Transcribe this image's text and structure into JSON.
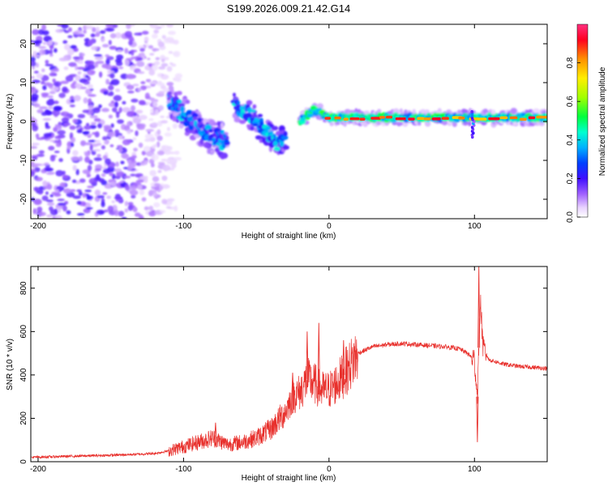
{
  "title": "S199.2026.009.21.42.G14",
  "colors": {
    "snr_line": "#e8302c",
    "frame": "#000000"
  },
  "chart_data": [
    {
      "type": "heatmap",
      "title": "S199.2026.009.21.42.G14",
      "xlabel": "Height of straight line (km)",
      "ylabel": "Frequency (Hz)",
      "xlim": [
        -205,
        150
      ],
      "ylim": [
        -25,
        25
      ],
      "x_ticks": [
        "-200",
        "-100",
        "0",
        "100"
      ],
      "x_tick_values": [
        -200,
        -100,
        0,
        100
      ],
      "y_ticks": [
        "20",
        "10",
        "0",
        "-10",
        "-20"
      ],
      "y_tick_values": [
        20,
        10,
        0,
        -10,
        -20
      ],
      "colorbar": {
        "label": "Normalized spectral amplitude",
        "range": [
          0.0,
          1.0
        ],
        "ticks": [
          "0.0",
          "0.2",
          "0.4",
          "0.6",
          "0.8"
        ],
        "tick_values": [
          0.0,
          0.2,
          0.4,
          0.6,
          0.8
        ],
        "colormap": [
          "#ffffff",
          "#d9b6ff",
          "#8a3cf0",
          "#2a00ff",
          "#00a0ff",
          "#00ffe0",
          "#00ff40",
          "#b0ff00",
          "#ffff00",
          "#ff9000",
          "#ff0030",
          "#ff40c0"
        ]
      },
      "description_of_structure": {
        "noise_region_km": [
          -205,
          -110
        ],
        "descending_ridge": [
          [
            -110,
            6
          ],
          [
            -100,
            2
          ],
          [
            -90,
            -1
          ],
          [
            -80,
            -4
          ],
          [
            -70,
            -5
          ]
        ],
        "upper_ridge": [
          [
            -65,
            4
          ],
          [
            -55,
            2
          ],
          [
            -45,
            -2
          ],
          [
            -35,
            -6
          ],
          [
            -30,
            -4
          ]
        ],
        "stable_tone": [
          [
            -20,
            0
          ],
          [
            -10,
            3
          ],
          [
            0,
            1
          ],
          [
            50,
            1
          ],
          [
            100,
            1
          ],
          [
            150,
            1
          ]
        ]
      }
    },
    {
      "type": "line",
      "xlabel": "Height of straight line (km)",
      "ylabel": "SNR (10 * v/v)",
      "xlim": [
        -205,
        150
      ],
      "ylim": [
        0,
        900
      ],
      "x_ticks": [
        "-200",
        "-100",
        "0",
        "100"
      ],
      "x_tick_values": [
        -200,
        -100,
        0,
        100
      ],
      "y_ticks": [
        "0",
        "200",
        "400",
        "600",
        "800"
      ],
      "y_tick_values": [
        0,
        200,
        400,
        600,
        800
      ],
      "series": [
        {
          "name": "SNR",
          "x": [
            -205,
            -180,
            -160,
            -140,
            -120,
            -110,
            -100,
            -90,
            -80,
            -70,
            -60,
            -50,
            -40,
            -30,
            -25,
            -20,
            -15,
            -10,
            -5,
            0,
            5,
            10,
            15,
            20,
            30,
            40,
            50,
            60,
            70,
            80,
            90,
            95,
            100,
            102,
            104,
            106,
            110,
            120,
            130,
            140,
            150
          ],
          "y": [
            20,
            25,
            28,
            32,
            38,
            50,
            70,
            90,
            110,
            80,
            90,
            110,
            150,
            230,
            300,
            320,
            380,
            360,
            330,
            330,
            360,
            400,
            450,
            500,
            530,
            540,
            545,
            540,
            535,
            530,
            520,
            500,
            470,
            300,
            750,
            520,
            470,
            450,
            440,
            435,
            430
          ],
          "spikes": [
            {
              "x": -78,
              "y": 180
            },
            {
              "x": -45,
              "y": 130
            },
            {
              "x": -25,
              "y": 410
            },
            {
              "x": -15,
              "y": 600
            },
            {
              "x": -7,
              "y": 640
            },
            {
              "x": 10,
              "y": 560
            },
            {
              "x": 102,
              "y": 90
            },
            {
              "x": 103,
              "y": 900
            }
          ]
        }
      ]
    }
  ]
}
